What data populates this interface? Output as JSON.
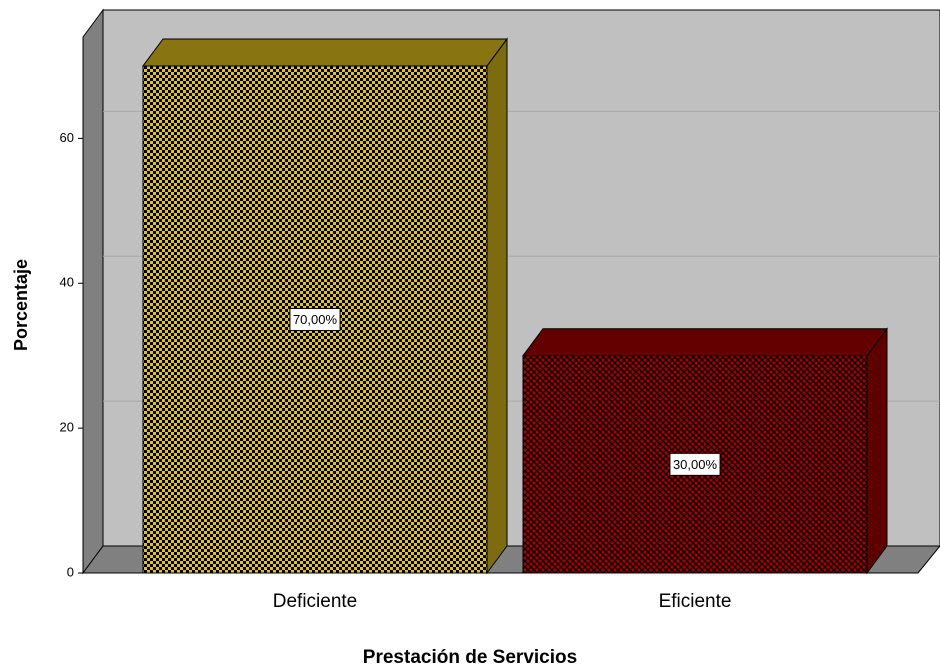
{
  "chart_data": {
    "type": "bar3d",
    "x_label": "Prestación de Servicios",
    "y_label": "Porcentaje",
    "categories": [
      "Deficiente",
      "Eficiente"
    ],
    "values": [
      70,
      30
    ],
    "value_labels": [
      "70,00%",
      "30,00%"
    ],
    "colors": [
      "#e3c21c",
      "#a80000"
    ],
    "ylim": [
      0,
      74
    ],
    "yticks": [
      0,
      20,
      40,
      60
    ],
    "grid": true
  }
}
